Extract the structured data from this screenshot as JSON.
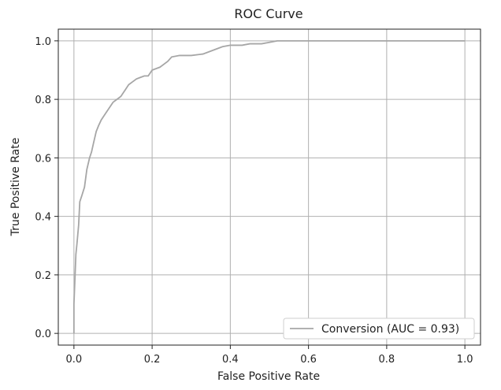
{
  "chart_data": {
    "type": "line",
    "title": "ROC Curve",
    "xlabel": "False Positive Rate",
    "ylabel": "True Positive Rate",
    "xlim": [
      -0.04,
      1.04
    ],
    "ylim": [
      -0.04,
      1.04
    ],
    "xticks": [
      0.0,
      0.2,
      0.4,
      0.6,
      0.8,
      1.0
    ],
    "yticks": [
      0.0,
      0.2,
      0.4,
      0.6,
      0.8,
      1.0
    ],
    "xtick_labels": [
      "0.0",
      "0.2",
      "0.4",
      "0.6",
      "0.8",
      "1.0"
    ],
    "ytick_labels": [
      "0.0",
      "0.2",
      "0.4",
      "0.6",
      "0.8",
      "1.0"
    ],
    "grid": true,
    "legend_position": "bottom-right",
    "series": [
      {
        "name": "Conversion (AUC = 0.93)",
        "color": "#a6a6a6",
        "x": [
          0.0,
          0.0,
          0.003,
          0.005,
          0.008,
          0.012,
          0.015,
          0.02,
          0.027,
          0.033,
          0.04,
          0.045,
          0.05,
          0.057,
          0.063,
          0.07,
          0.08,
          0.09,
          0.1,
          0.11,
          0.12,
          0.13,
          0.14,
          0.15,
          0.16,
          0.17,
          0.18,
          0.19,
          0.2,
          0.21,
          0.22,
          0.23,
          0.24,
          0.25,
          0.27,
          0.3,
          0.33,
          0.36,
          0.38,
          0.4,
          0.43,
          0.45,
          0.48,
          0.5,
          0.52,
          0.6,
          0.7,
          0.8,
          0.9,
          1.0
        ],
        "y": [
          0.0,
          0.1,
          0.2,
          0.27,
          0.31,
          0.37,
          0.45,
          0.47,
          0.5,
          0.56,
          0.6,
          0.62,
          0.65,
          0.69,
          0.71,
          0.73,
          0.75,
          0.77,
          0.79,
          0.8,
          0.81,
          0.83,
          0.85,
          0.86,
          0.87,
          0.875,
          0.88,
          0.88,
          0.9,
          0.905,
          0.91,
          0.92,
          0.93,
          0.945,
          0.95,
          0.95,
          0.955,
          0.97,
          0.98,
          0.985,
          0.985,
          0.99,
          0.99,
          0.995,
          1.0,
          1.0,
          1.0,
          1.0,
          1.0,
          1.0
        ]
      }
    ]
  }
}
